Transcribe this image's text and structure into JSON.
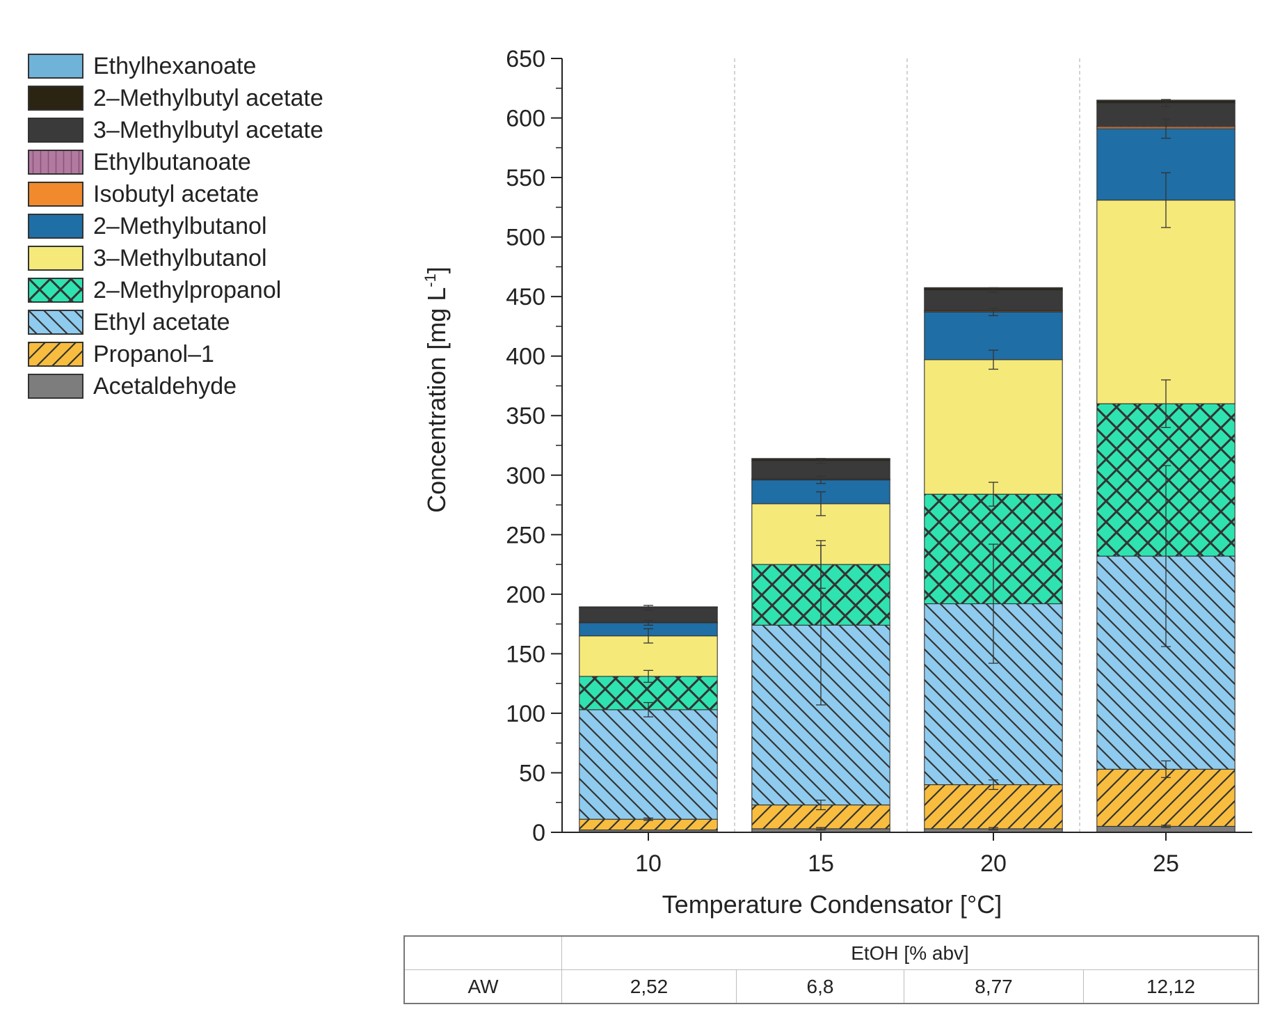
{
  "chart_data": {
    "type": "bar",
    "stacked": true,
    "xlabel": "Temperature Condensator [°C]",
    "ylabel": "Concentration [mg L-1]",
    "ylabel_main": "Concentration [mg L",
    "ylabel_sup": "-1",
    "ylabel_end": "]",
    "ylim": [
      0,
      650
    ],
    "yticks": [
      0,
      50,
      100,
      150,
      200,
      250,
      300,
      350,
      400,
      450,
      500,
      550,
      600,
      650
    ],
    "categories": [
      "10",
      "15",
      "20",
      "25"
    ],
    "series": [
      {
        "name": "Acetaldehyde",
        "color": "#7d7d7d",
        "pattern": "none",
        "values": [
          2,
          3,
          3,
          5
        ],
        "errors": [
          0,
          1,
          1,
          1
        ]
      },
      {
        "name": "Propanol–1",
        "color": "#f8bd3f",
        "pattern": "forward",
        "values": [
          9,
          20,
          37,
          48
        ],
        "errors": [
          1,
          4,
          4,
          7
        ]
      },
      {
        "name": "Ethyl acetate",
        "color": "#8ecbee",
        "pattern": "backward",
        "values": [
          92,
          151,
          152,
          179
        ],
        "errors": [
          6,
          67,
          50,
          76
        ]
      },
      {
        "name": "2–Methylpropanol",
        "color": "#2fe3b0",
        "pattern": "cross",
        "values": [
          28,
          51,
          92,
          128
        ],
        "errors": [
          5,
          20,
          10,
          20
        ]
      },
      {
        "name": "3–Methylbutanol",
        "color": "#f5e97a",
        "pattern": "none",
        "values": [
          34,
          51,
          113,
          171
        ],
        "errors": [
          6,
          10,
          8,
          23
        ]
      },
      {
        "name": "2–Methylbutanol",
        "color": "#1f6ea5",
        "pattern": "none",
        "values": [
          11,
          20,
          40,
          60
        ],
        "errors": [
          2,
          3,
          3,
          8
        ]
      },
      {
        "name": "Isobutyl acetate",
        "color": "#f08a2c",
        "pattern": "none",
        "values": [
          0.3,
          0.5,
          0.8,
          1.5
        ],
        "errors": [
          0,
          0,
          0,
          0
        ]
      },
      {
        "name": "Ethylbutanoate",
        "color": "#b27aa0",
        "pattern": "vertical",
        "values": [
          0.3,
          0.5,
          0.6,
          1
        ],
        "errors": [
          0,
          0,
          0,
          0
        ]
      },
      {
        "name": "3–Methylbutyl acetate",
        "color": "#3a3a3a",
        "pattern": "none",
        "values": [
          12,
          15,
          17,
          19
        ],
        "errors": [
          2,
          2,
          2,
          3
        ]
      },
      {
        "name": "2–Methylbutyl acetate",
        "color": "#2b2413",
        "pattern": "none",
        "values": [
          0.5,
          1.5,
          1.5,
          2
        ],
        "errors": [
          0,
          0,
          0,
          0
        ]
      },
      {
        "name": "Ethylhexanoate",
        "color": "#6fb3d9",
        "pattern": "none",
        "values": [
          0.3,
          0.5,
          0.6,
          0.5
        ],
        "errors": [
          0,
          0,
          0,
          0
        ]
      }
    ],
    "legend_order": [
      "Ethylhexanoate",
      "2–Methylbutyl acetate",
      "3–Methylbutyl acetate",
      "Ethylbutanoate",
      "Isobutyl acetate",
      "2–Methylbutanol",
      "3–Methylbutanol",
      "2–Methylpropanol",
      "Ethyl acetate",
      "Propanol–1",
      "Acetaldehyde"
    ],
    "legend_position": "top-left",
    "grid": false,
    "separator_lines": true
  },
  "table": {
    "header": "EtOH [% abv]",
    "row_label": "AW",
    "values": [
      "2,52",
      "6,8",
      "8,77",
      "12,12"
    ]
  }
}
